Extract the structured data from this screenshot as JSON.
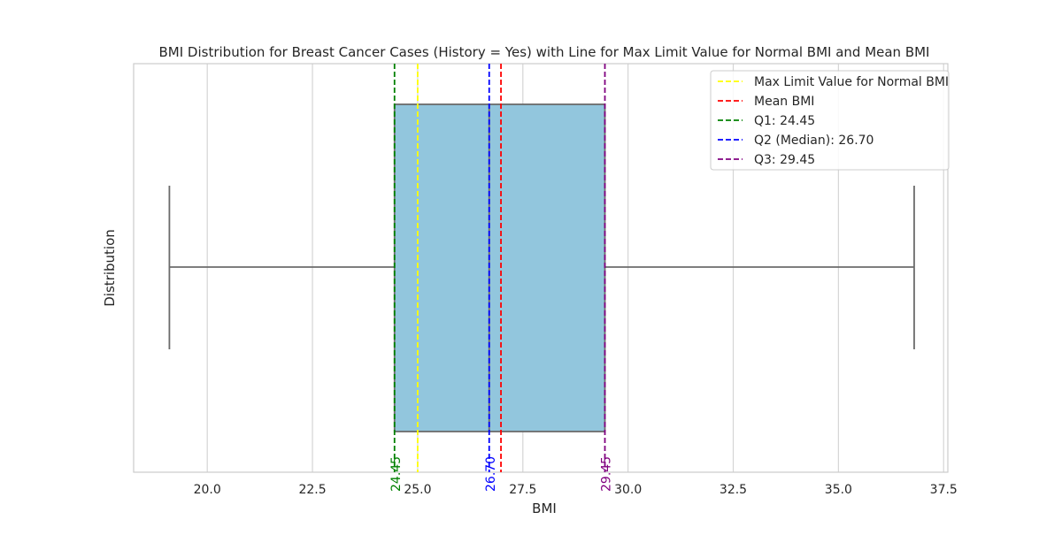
{
  "chart_data": {
    "type": "box",
    "title": "BMI Distribution for Breast Cancer Cases (History = Yes) with Line for Max Limit Value for Normal BMI and Mean BMI",
    "xlabel": "BMI",
    "ylabel": "Distribution",
    "xlim": [
      18.25,
      37.6
    ],
    "x_ticks": [
      20.0,
      22.5,
      25.0,
      27.5,
      30.0,
      32.5,
      35.0,
      37.5
    ],
    "x_tick_labels": [
      "20.0",
      "22.5",
      "25.0",
      "27.5",
      "30.0",
      "32.5",
      "35.0",
      "37.5"
    ],
    "grid": true,
    "legend_position": "top-right",
    "box": {
      "min": 19.1,
      "q1": 24.45,
      "median": 26.7,
      "q3": 29.45,
      "max": 36.8,
      "fill": "#92c6dd",
      "edge": "#6b6b6b"
    },
    "reference_lines": [
      {
        "label": "Max Limit Value for Normal BMI",
        "value": 25.0,
        "color": "#ffff00"
      },
      {
        "label": "Mean BMI",
        "value": 26.98,
        "color": "#ff0000"
      },
      {
        "label": "Q1: 24.45",
        "value": 24.45,
        "color": "#008000",
        "annotation": "24.45"
      },
      {
        "label": "Q2 (Median): 26.70",
        "value": 26.7,
        "color": "#0000ff",
        "annotation": "26.70"
      },
      {
        "label": "Q3: 29.45",
        "value": 29.45,
        "color": "#800080",
        "annotation": "29.45"
      }
    ]
  }
}
